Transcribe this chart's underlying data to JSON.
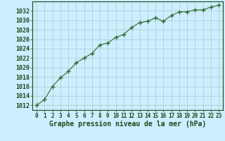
{
  "x": [
    0,
    1,
    2,
    3,
    4,
    5,
    6,
    7,
    8,
    9,
    10,
    11,
    12,
    13,
    14,
    15,
    16,
    17,
    18,
    19,
    20,
    21,
    22,
    23
  ],
  "y": [
    1012.0,
    1013.2,
    1016.0,
    1017.8,
    1019.2,
    1021.0,
    1022.0,
    1023.0,
    1024.8,
    1025.2,
    1026.4,
    1027.0,
    1028.5,
    1029.5,
    1029.8,
    1030.5,
    1029.8,
    1031.0,
    1031.8,
    1031.8,
    1032.2,
    1032.2,
    1032.8,
    1033.2
  ],
  "line_color": "#2d6a2d",
  "marker": "+",
  "marker_size": 4,
  "bg_color": "#cceeff",
  "grid_color": "#b0c8c8",
  "xlabel": "Graphe pression niveau de la mer (hPa)",
  "xlabel_fontsize": 7,
  "ylabel_ticks": [
    1012,
    1014,
    1016,
    1018,
    1020,
    1022,
    1024,
    1026,
    1028,
    1030,
    1032
  ],
  "ylim": [
    1011.0,
    1034.0
  ],
  "xlim": [
    -0.5,
    23.5
  ],
  "xticks": [
    0,
    1,
    2,
    3,
    4,
    5,
    6,
    7,
    8,
    9,
    10,
    11,
    12,
    13,
    14,
    15,
    16,
    17,
    18,
    19,
    20,
    21,
    22,
    23
  ],
  "font_color": "#1a4a1a",
  "tick_fontsize": 5.5,
  "ytick_fontsize": 6.0
}
